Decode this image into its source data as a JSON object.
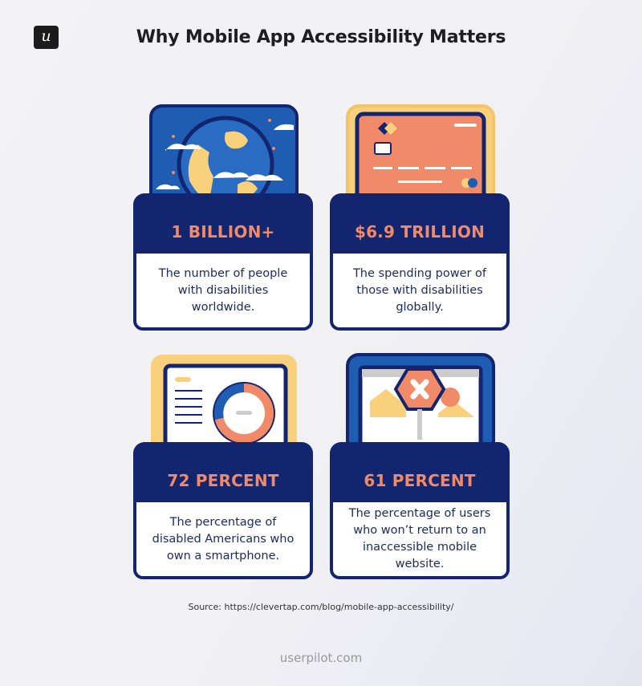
{
  "header": {
    "logo_letter": "u",
    "title": "Why Mobile App Accessibility Matters"
  },
  "colors": {
    "navy": "#13256e",
    "coral": "#f08a68",
    "blue": "#1f5db3",
    "yellow": "#f9d07c"
  },
  "cards": [
    {
      "stat": "1 BILLION+",
      "description": "The number of people with disabilities worldwide.",
      "icon": "globe-icon"
    },
    {
      "stat": "$6.9 TRILLION",
      "description": "The spending power of those with disabilities globally.",
      "icon": "credit-card-icon"
    },
    {
      "stat": "72 PERCENT",
      "description": "The percentage of disabled Americans who own a smartphone.",
      "icon": "donut-chart-screen-icon"
    },
    {
      "stat": "61 PERCENT",
      "description": "The percentage of users who won’t return to an inaccessible mobile website.",
      "icon": "blocked-website-icon"
    }
  ],
  "source": "Source: https://clevertap.com/blog/mobile-app-accessibility/",
  "footer": "userpilot.com"
}
